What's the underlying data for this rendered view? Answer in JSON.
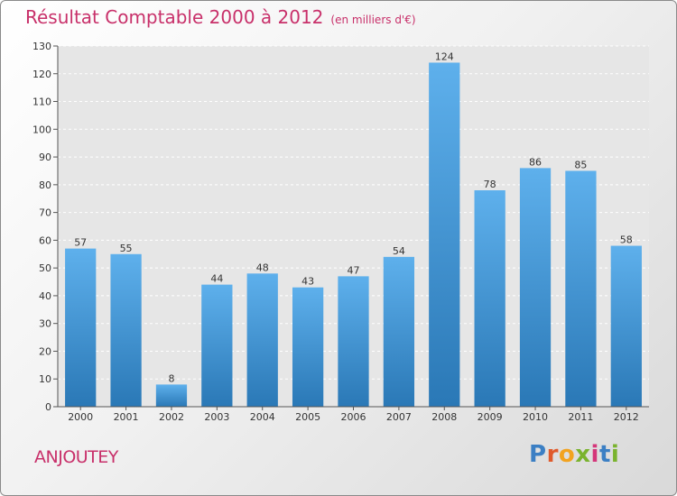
{
  "header": {
    "title": "Résultat Comptable 2000 à 2012",
    "subtitle": "(en milliers d'€)"
  },
  "footer": {
    "commune": "ANJOUTEY",
    "brand_letters": [
      "P",
      "r",
      "o",
      "x",
      "i",
      "t",
      "i"
    ],
    "brand_colors": [
      "#3b7fc4",
      "#e05a2b",
      "#f2a320",
      "#7ab32e",
      "#d4367a",
      "#3b7fc4",
      "#7ab32e"
    ]
  },
  "chart_data": {
    "type": "bar",
    "categories": [
      "2000",
      "2001",
      "2002",
      "2003",
      "2004",
      "2005",
      "2006",
      "2007",
      "2008",
      "2009",
      "2010",
      "2011",
      "2012"
    ],
    "values": [
      57,
      55,
      8,
      44,
      48,
      43,
      47,
      54,
      124,
      78,
      86,
      85,
      58
    ],
    "data_labels": [
      "57",
      "55",
      "8",
      "44",
      "48",
      "43",
      "47",
      "54",
      "124",
      "78",
      "86",
      "85",
      "58"
    ],
    "yticks": [
      0,
      10,
      20,
      30,
      40,
      50,
      60,
      70,
      80,
      90,
      100,
      110,
      120,
      130
    ],
    "ytick_labels": [
      "0",
      "10",
      "20",
      "30",
      "40",
      "50",
      "60",
      "70",
      "80",
      "90",
      "100",
      "110",
      "120",
      "130"
    ],
    "ylim": [
      0,
      130
    ],
    "grid": true,
    "bar_color_top": "#5eb0ec",
    "bar_color_bottom": "#2a78b6",
    "plot_background": "#e6e6e6"
  }
}
